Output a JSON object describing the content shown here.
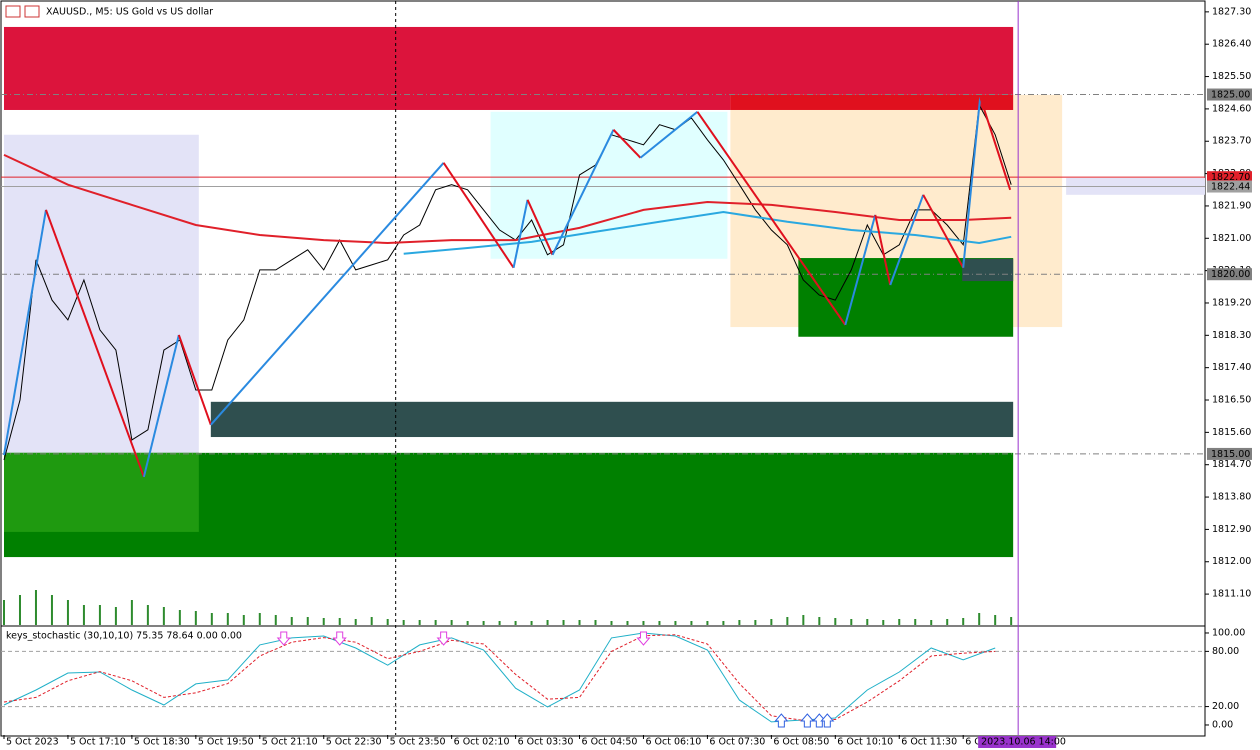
{
  "chart_data": {
    "type": "candlestick",
    "title": "XAUUSD., M5:  US Gold vs US dollar",
    "xlim": [
      -0.75,
      300.5
    ],
    "ylim": [
      1810.24,
      1827.63
    ],
    "yticks": [
      {
        "value": 1827.3,
        "label": "1827.30"
      },
      {
        "value": 1826.4,
        "label": "1826.40"
      },
      {
        "value": 1825.5,
        "label": "1825.50"
      },
      {
        "value": 1824.6,
        "label": "1824.60"
      },
      {
        "value": 1823.7,
        "label": "1823.70"
      },
      {
        "value": 1822.8,
        "label": "1822.80"
      },
      {
        "value": 1821.9,
        "label": "1821.90"
      },
      {
        "value": 1821,
        "label": "1821.00"
      },
      {
        "value": 1820.1,
        "label": "1820.10"
      },
      {
        "value": 1819.2,
        "label": "1819.20"
      },
      {
        "value": 1818.3,
        "label": "1818.30"
      },
      {
        "value": 1817.4,
        "label": "1817.40"
      },
      {
        "value": 1816.5,
        "label": "1816.50"
      },
      {
        "value": 1815.6,
        "label": "1815.60"
      },
      {
        "value": 1814.7,
        "label": "1814.70"
      },
      {
        "value": 1813.8,
        "label": "1813.80"
      },
      {
        "value": 1812.9,
        "label": "1812.90"
      },
      {
        "value": 1812,
        "label": "1812.00"
      },
      {
        "value": 1811.1,
        "label": "1811.10"
      }
    ],
    "xticks": [
      {
        "value": 0,
        "label": "5 Oct 2023"
      },
      {
        "value": 16,
        "label": "5 Oct 17:10"
      },
      {
        "value": 32,
        "label": "5 Oct 18:30"
      },
      {
        "value": 48,
        "label": "5 Oct 19:50"
      },
      {
        "value": 64,
        "label": "5 Oct 21:10"
      },
      {
        "value": 80,
        "label": "5 Oct 22:30"
      },
      {
        "value": 96,
        "label": "5 Oct 23:50"
      },
      {
        "value": 112,
        "label": "6 Oct 02:10"
      },
      {
        "value": 128,
        "label": "6 Oct 03:30"
      },
      {
        "value": 144,
        "label": "6 Oct 04:50"
      },
      {
        "value": 160,
        "label": "6 Oct 06:10"
      },
      {
        "value": 176,
        "label": "6 Oct 07:30"
      },
      {
        "value": 192,
        "label": "6 Oct 08:50"
      },
      {
        "value": 208,
        "label": "6 Oct 10:10"
      },
      {
        "value": 224,
        "label": "6 Oct 11:30"
      },
      {
        "value": 240,
        "label": "6 O"
      }
    ],
    "cursor_time": {
      "value": 253.75,
      "label": "2023.10.06 14:00",
      "color": "#9933cc"
    },
    "vlines": [
      {
        "value": 98,
        "color": "#000000"
      }
    ],
    "levels": [
      {
        "value": 1825,
        "label": "1825.00",
        "color": "#808080",
        "dash": "6 3 1 3"
      },
      {
        "value": 1822.7,
        "label": "1822.70",
        "color": "#e0202a",
        "dash": ""
      },
      {
        "value": 1822.44,
        "label": "1822.44",
        "color": "#a0a0a0",
        "dash": ""
      },
      {
        "value": 1820,
        "label": "1820.00",
        "color": "#808080",
        "dash": "6 3 1 3"
      },
      {
        "value": 1815,
        "label": "1815.00",
        "color": "#808080",
        "dash": "6 3 1 3"
      }
    ],
    "zones": [
      {
        "x": [
          0,
          252.5
        ],
        "y": [
          1824.57,
          1826.88
        ],
        "color": "#dc143c"
      },
      {
        "x": [
          0,
          48.75
        ],
        "y": [
          1812.83,
          1823.88
        ],
        "color": "#e3e3f7"
      },
      {
        "x": [
          0,
          252.5
        ],
        "y": [
          1812.13,
          1815.03
        ],
        "color": "#008000"
      },
      {
        "x": [
          0,
          48.75
        ],
        "y": [
          1812.83,
          1815.03
        ],
        "color": "#1f9a10"
      },
      {
        "x": [
          51.75,
          252.5
        ],
        "y": [
          1815.47,
          1816.45
        ],
        "color": "#2f4f4f"
      },
      {
        "x": [
          121.75,
          181
        ],
        "y": [
          1820.43,
          1824.52
        ],
        "color": "#e0ffff"
      },
      {
        "x": [
          181.75,
          264.75
        ],
        "y": [
          1818.53,
          1824.99
        ],
        "color": "#ffebcd"
      },
      {
        "x": [
          181.75,
          252.5
        ],
        "y": [
          1824.57,
          1824.99
        ],
        "color": "#e0101e"
      },
      {
        "x": [
          198.75,
          252.5
        ],
        "y": [
          1818.26,
          1820.45
        ],
        "color": "#008000"
      },
      {
        "x": [
          239.75,
          252.5
        ],
        "y": [
          1819.81,
          1820.43
        ],
        "color": "#2f4f4f"
      },
      {
        "x": [
          265.75,
          300.5
        ],
        "y": [
          1822.21,
          1822.68
        ],
        "color": "#e3e3f7"
      }
    ],
    "lines": [
      {
        "color": "#000000",
        "width": 1,
        "x": [
          0,
          4,
          8,
          12,
          16,
          20,
          24,
          28,
          32,
          36,
          40,
          44,
          48,
          52,
          56,
          60,
          64,
          68,
          72,
          76,
          80,
          84,
          88,
          92,
          96,
          100,
          104,
          108,
          112,
          116,
          120,
          124,
          128,
          132,
          136,
          140,
          144,
          148,
          152,
          156,
          160,
          164,
          168,
          172,
          176,
          180,
          184,
          188,
          192,
          196,
          200,
          204,
          208,
          212,
          216,
          220,
          224,
          228,
          232,
          236,
          240,
          244,
          248,
          252
        ],
        "values": [
          1814.83,
          1816.5,
          1820.4,
          1819.28,
          1818.73,
          1819.84,
          1818.45,
          1817.89,
          1815.39,
          1815.67,
          1817.89,
          1818.17,
          1816.78,
          1816.78,
          1818.17,
          1818.73,
          1820.12,
          1820.12,
          1820.4,
          1820.68,
          1820.12,
          1820.95,
          1820.12,
          1820.26,
          1820.4,
          1821.09,
          1821.37,
          1822.35,
          1822.49,
          1822.35,
          1821.79,
          1821.23,
          1820.95,
          1821.51,
          1820.54,
          1820.82,
          1822.76,
          1823.04,
          1823.88,
          1823.74,
          1823.6,
          1824.16,
          1824.02,
          1824.35,
          1823.74,
          1823.18,
          1822.49,
          1821.79,
          1821.23,
          1820.82,
          1819.84,
          1819.42,
          1819.28,
          1820.12,
          1821.37,
          1820.54,
          1820.82,
          1821.79,
          1821.79,
          1821.37,
          1820.82,
          1824.71,
          1823.88,
          1822.49
        ]
      },
      {
        "color": "#e0202a",
        "width": 2,
        "x": [
          0,
          16,
          32,
          48,
          64,
          80,
          96,
          112,
          128,
          144,
          160,
          176,
          192,
          208,
          224,
          240,
          252
        ],
        "values": [
          1823.32,
          1822.49,
          1821.93,
          1821.37,
          1821.09,
          1820.95,
          1820.87,
          1820.95,
          1820.95,
          1821.29,
          1821.79,
          1822.01,
          1821.93,
          1821.73,
          1821.51,
          1821.51,
          1821.57
        ]
      },
      {
        "color": "#2aa8e0",
        "width": 2,
        "x": [
          100,
          116,
          132,
          148,
          164,
          180,
          196,
          212,
          228,
          244,
          252
        ],
        "values": [
          1820.57,
          1820.73,
          1820.9,
          1821.18,
          1821.46,
          1821.73,
          1821.46,
          1821.23,
          1821.09,
          1820.87,
          1821.04
        ]
      }
    ],
    "zigzag": {
      "up_color": "#2a8ae0",
      "down_color": "#e0101e",
      "x": [
        0,
        10.5,
        35,
        43.75,
        51.75,
        110,
        127.5,
        131,
        137.25,
        152.5,
        159.25,
        173.5,
        210.5,
        218,
        221.75,
        230,
        240,
        244.25,
        251.75
      ],
      "values": [
        1814.97,
        1821.79,
        1814.36,
        1818.31,
        1815.81,
        1823.1,
        1820.18,
        1822.07,
        1820.54,
        1824.02,
        1823.24,
        1824.52,
        1818.59,
        1821.65,
        1819.7,
        1822.21,
        1820.18,
        1824.93,
        1822.35
      ]
    },
    "volume": {
      "color": "#2e8b2e",
      "vlim": [
        0,
        70
      ],
      "values": [
        25,
        30,
        35,
        30,
        25,
        20,
        20,
        18,
        25,
        20,
        18,
        15,
        14,
        12,
        12,
        10,
        12,
        10,
        8,
        8,
        7,
        7,
        6,
        8,
        6,
        5,
        5,
        5,
        5,
        4,
        4,
        4,
        4,
        4,
        5,
        5,
        5,
        5,
        4,
        4,
        4,
        4,
        4,
        4,
        4,
        4,
        5,
        5,
        6,
        8,
        10,
        8,
        7,
        6,
        6,
        5,
        6,
        6,
        5,
        6,
        7,
        12,
        10,
        8
      ]
    },
    "stochastic": {
      "title": "keys_stochastic (30,10,10) 75.35 78.64 0.00 0.00",
      "ylim": [
        -10.9,
        106.5
      ],
      "yticks": [
        {
          "value": 100,
          "label": "100.00"
        },
        {
          "value": 80,
          "label": "80.00"
        },
        {
          "value": 20,
          "label": "20.00"
        },
        {
          "value": 0,
          "label": "0.00"
        }
      ],
      "lines": [
        {
          "color": "#20b0c8",
          "dash": "",
          "x": [
            0,
            8,
            16,
            24,
            32,
            40,
            48,
            56,
            64,
            72,
            80,
            88,
            96,
            104,
            112,
            120,
            128,
            136,
            144,
            152,
            160,
            168,
            176,
            184,
            192,
            200,
            208,
            216,
            224,
            232,
            240,
            248
          ],
          "values": [
            21.7,
            38,
            56.5,
            57.6,
            38,
            21.7,
            44.6,
            49,
            87,
            94.6,
            96.7,
            83.7,
            65,
            87,
            94.6,
            81.5,
            40,
            19.6,
            38,
            94.6,
            100,
            96.7,
            81.5,
            27,
            3.3,
            5.4,
            7.6,
            38,
            57.6,
            83.7,
            70.7,
            83.7
          ]
        },
        {
          "color": "#e0202a",
          "dash": "3 2",
          "x": [
            0,
            8,
            16,
            24,
            32,
            40,
            48,
            56,
            64,
            72,
            80,
            88,
            96,
            104,
            112,
            120,
            128,
            136,
            144,
            152,
            160,
            168,
            176,
            184,
            192,
            200,
            208,
            216,
            224,
            232,
            240,
            248
          ],
          "values": [
            25,
            30,
            48,
            58,
            48,
            30,
            35,
            45,
            75,
            90,
            95,
            90,
            72,
            80,
            92,
            88,
            55,
            28,
            30,
            80,
            97,
            98,
            88,
            45,
            10,
            5,
            6,
            25,
            48,
            75,
            78,
            80
          ]
        }
      ],
      "sell_signals": {
        "color": "#e040e0",
        "x": [
          70,
          84,
          110,
          160
        ]
      },
      "buy_signals": {
        "color": "#3060e0",
        "x": [
          194.5,
          201,
          204,
          206
        ]
      }
    }
  }
}
